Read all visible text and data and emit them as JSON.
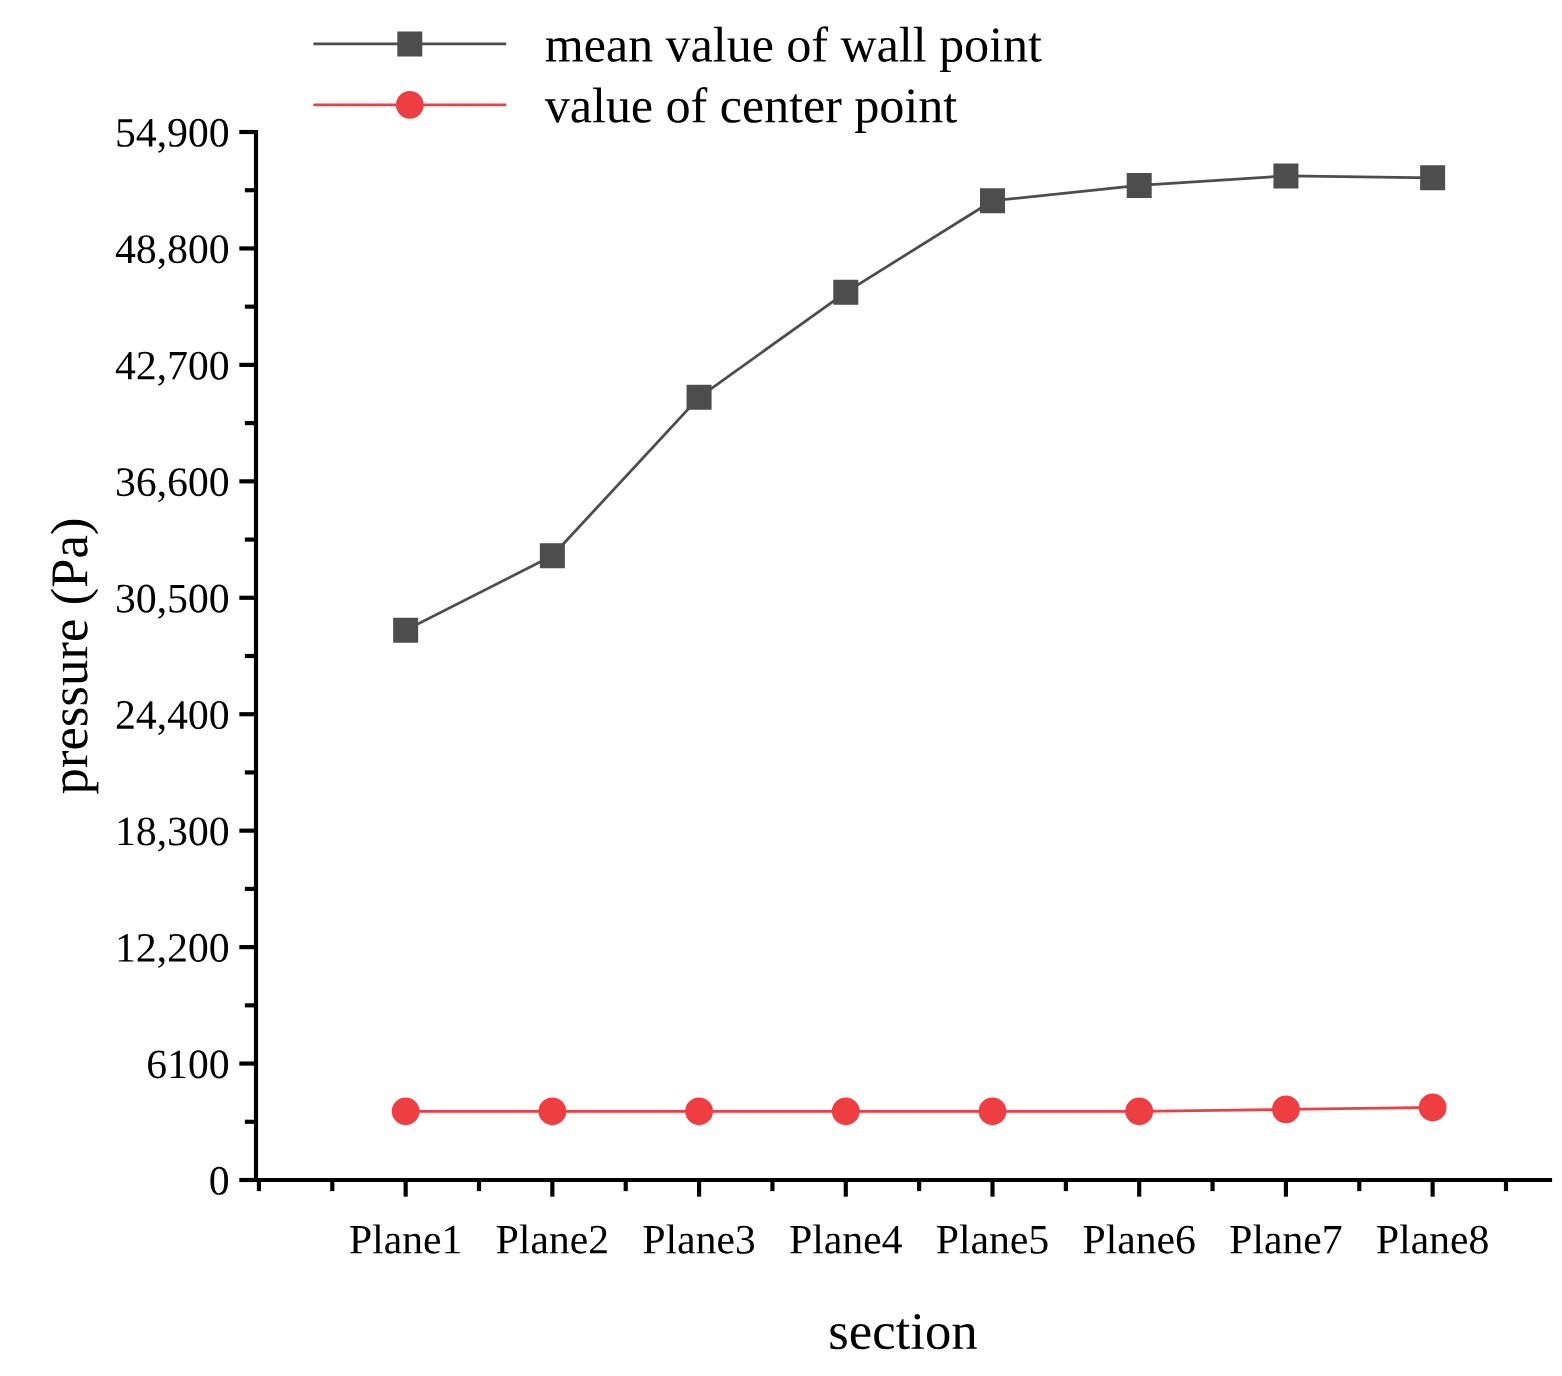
{
  "chart_data": {
    "type": "line",
    "xlabel": "section",
    "ylabel": "pressure (Pa)",
    "categories": [
      "Plane1",
      "Plane2",
      "Plane3",
      "Plane4",
      "Plane5",
      "Plane6",
      "Plane7",
      "Plane8"
    ],
    "series": [
      {
        "name": "mean value of wall point",
        "color": "#4d4d4d",
        "marker": "square",
        "values": [
          28800,
          32700,
          41000,
          46500,
          51300,
          52100,
          52600,
          52500
        ]
      },
      {
        "name": "value of center point",
        "color": "#ef3e42",
        "marker": "circle",
        "values": [
          3600,
          3600,
          3600,
          3600,
          3600,
          3600,
          3700,
          3800
        ]
      }
    ],
    "ylim": [
      0,
      54900
    ],
    "yticks": [
      0,
      {
        "value": 6100,
        "label": "6100"
      },
      {
        "value": 12200,
        "label": "12,200"
      },
      {
        "value": 18300,
        "label": "18,300"
      },
      {
        "value": 24400,
        "label": "24,400"
      },
      {
        "value": 30500,
        "label": "30,500"
      },
      {
        "value": 36600,
        "label": "36,600"
      },
      {
        "value": 42700,
        "label": "42,700"
      },
      {
        "value": 48800,
        "label": "48,800"
      },
      {
        "value": 54900,
        "label": "54,900"
      }
    ],
    "grid": false,
    "legend": "top left",
    "line_style": "solid"
  }
}
